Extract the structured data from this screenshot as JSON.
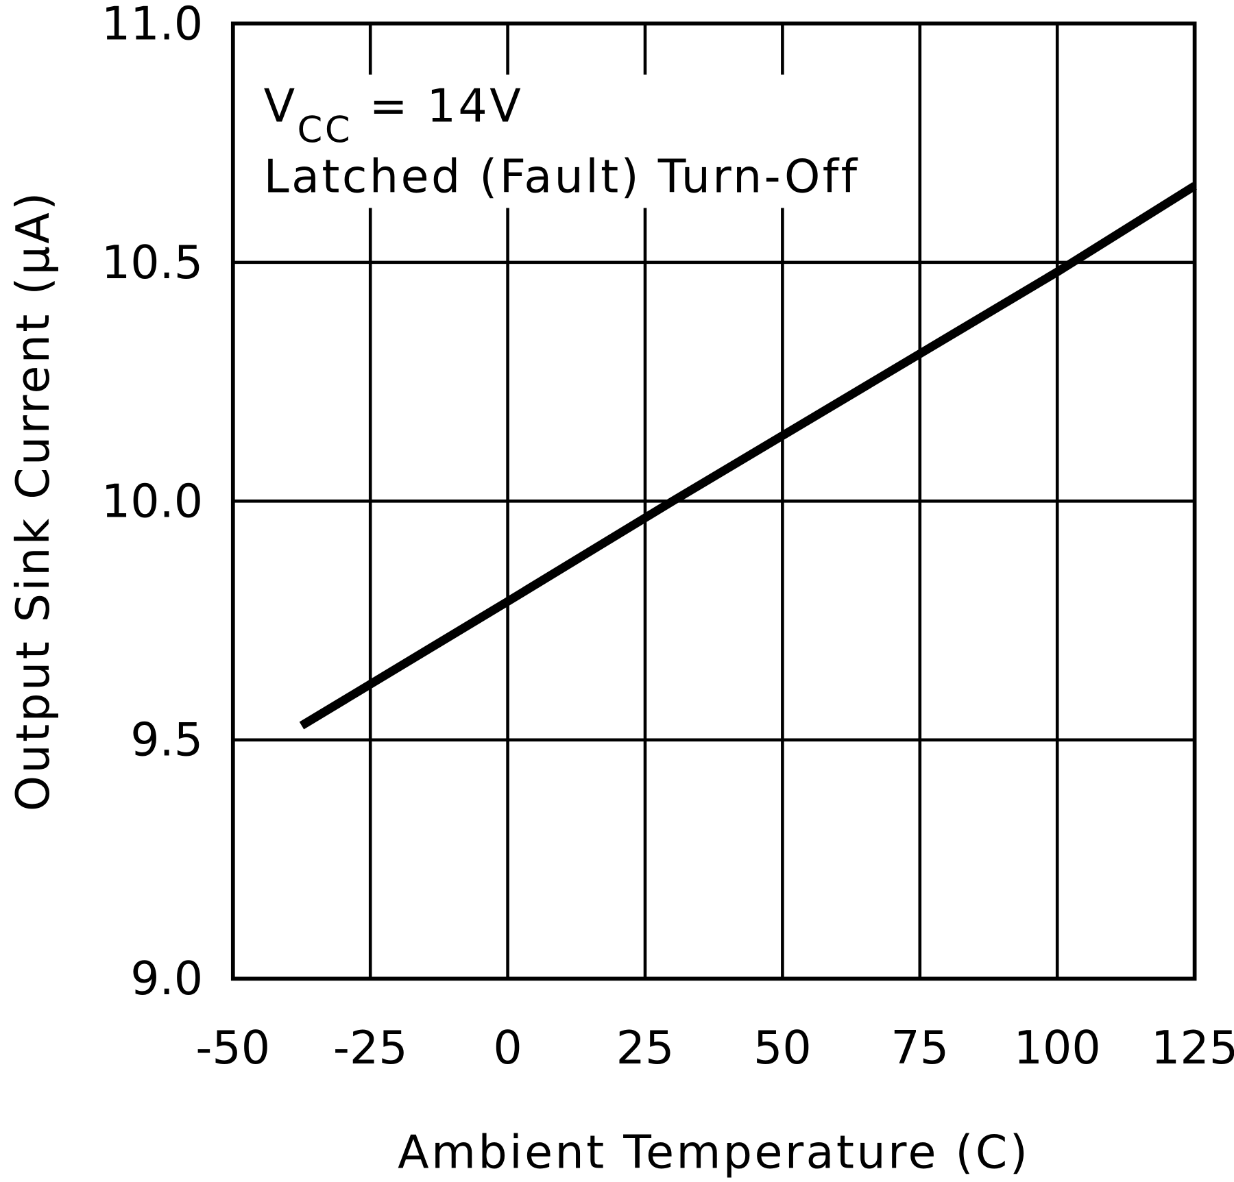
{
  "chart_data": {
    "type": "line",
    "xlabel": "Ambient Temperature (C)",
    "ylabel": "Output Sink Current (μA)",
    "annotation": {
      "main": "V",
      "subscript": "CC",
      "rest": " = 14V",
      "line2": "Latched (Fault) Turn-Off"
    },
    "x": [
      -37.5,
      0,
      30,
      100,
      125
    ],
    "series": [
      {
        "color": "#000000",
        "values": [
          9.53,
          9.79,
          10.0,
          10.48,
          10.66
        ]
      }
    ],
    "xlim": [
      -50,
      125
    ],
    "xticks": [
      -50,
      -25,
      0,
      25,
      50,
      75,
      100,
      125
    ],
    "ylim": [
      9.0,
      11.0
    ],
    "yticks": [
      {
        "value": 9.0,
        "label": "9.0"
      },
      {
        "value": 9.5,
        "label": "9.5"
      },
      {
        "value": 10.0,
        "label": "10.0"
      },
      {
        "value": 10.5,
        "label": "10.5"
      },
      {
        "value": 11.0,
        "label": "11.0"
      }
    ],
    "grid": true
  }
}
